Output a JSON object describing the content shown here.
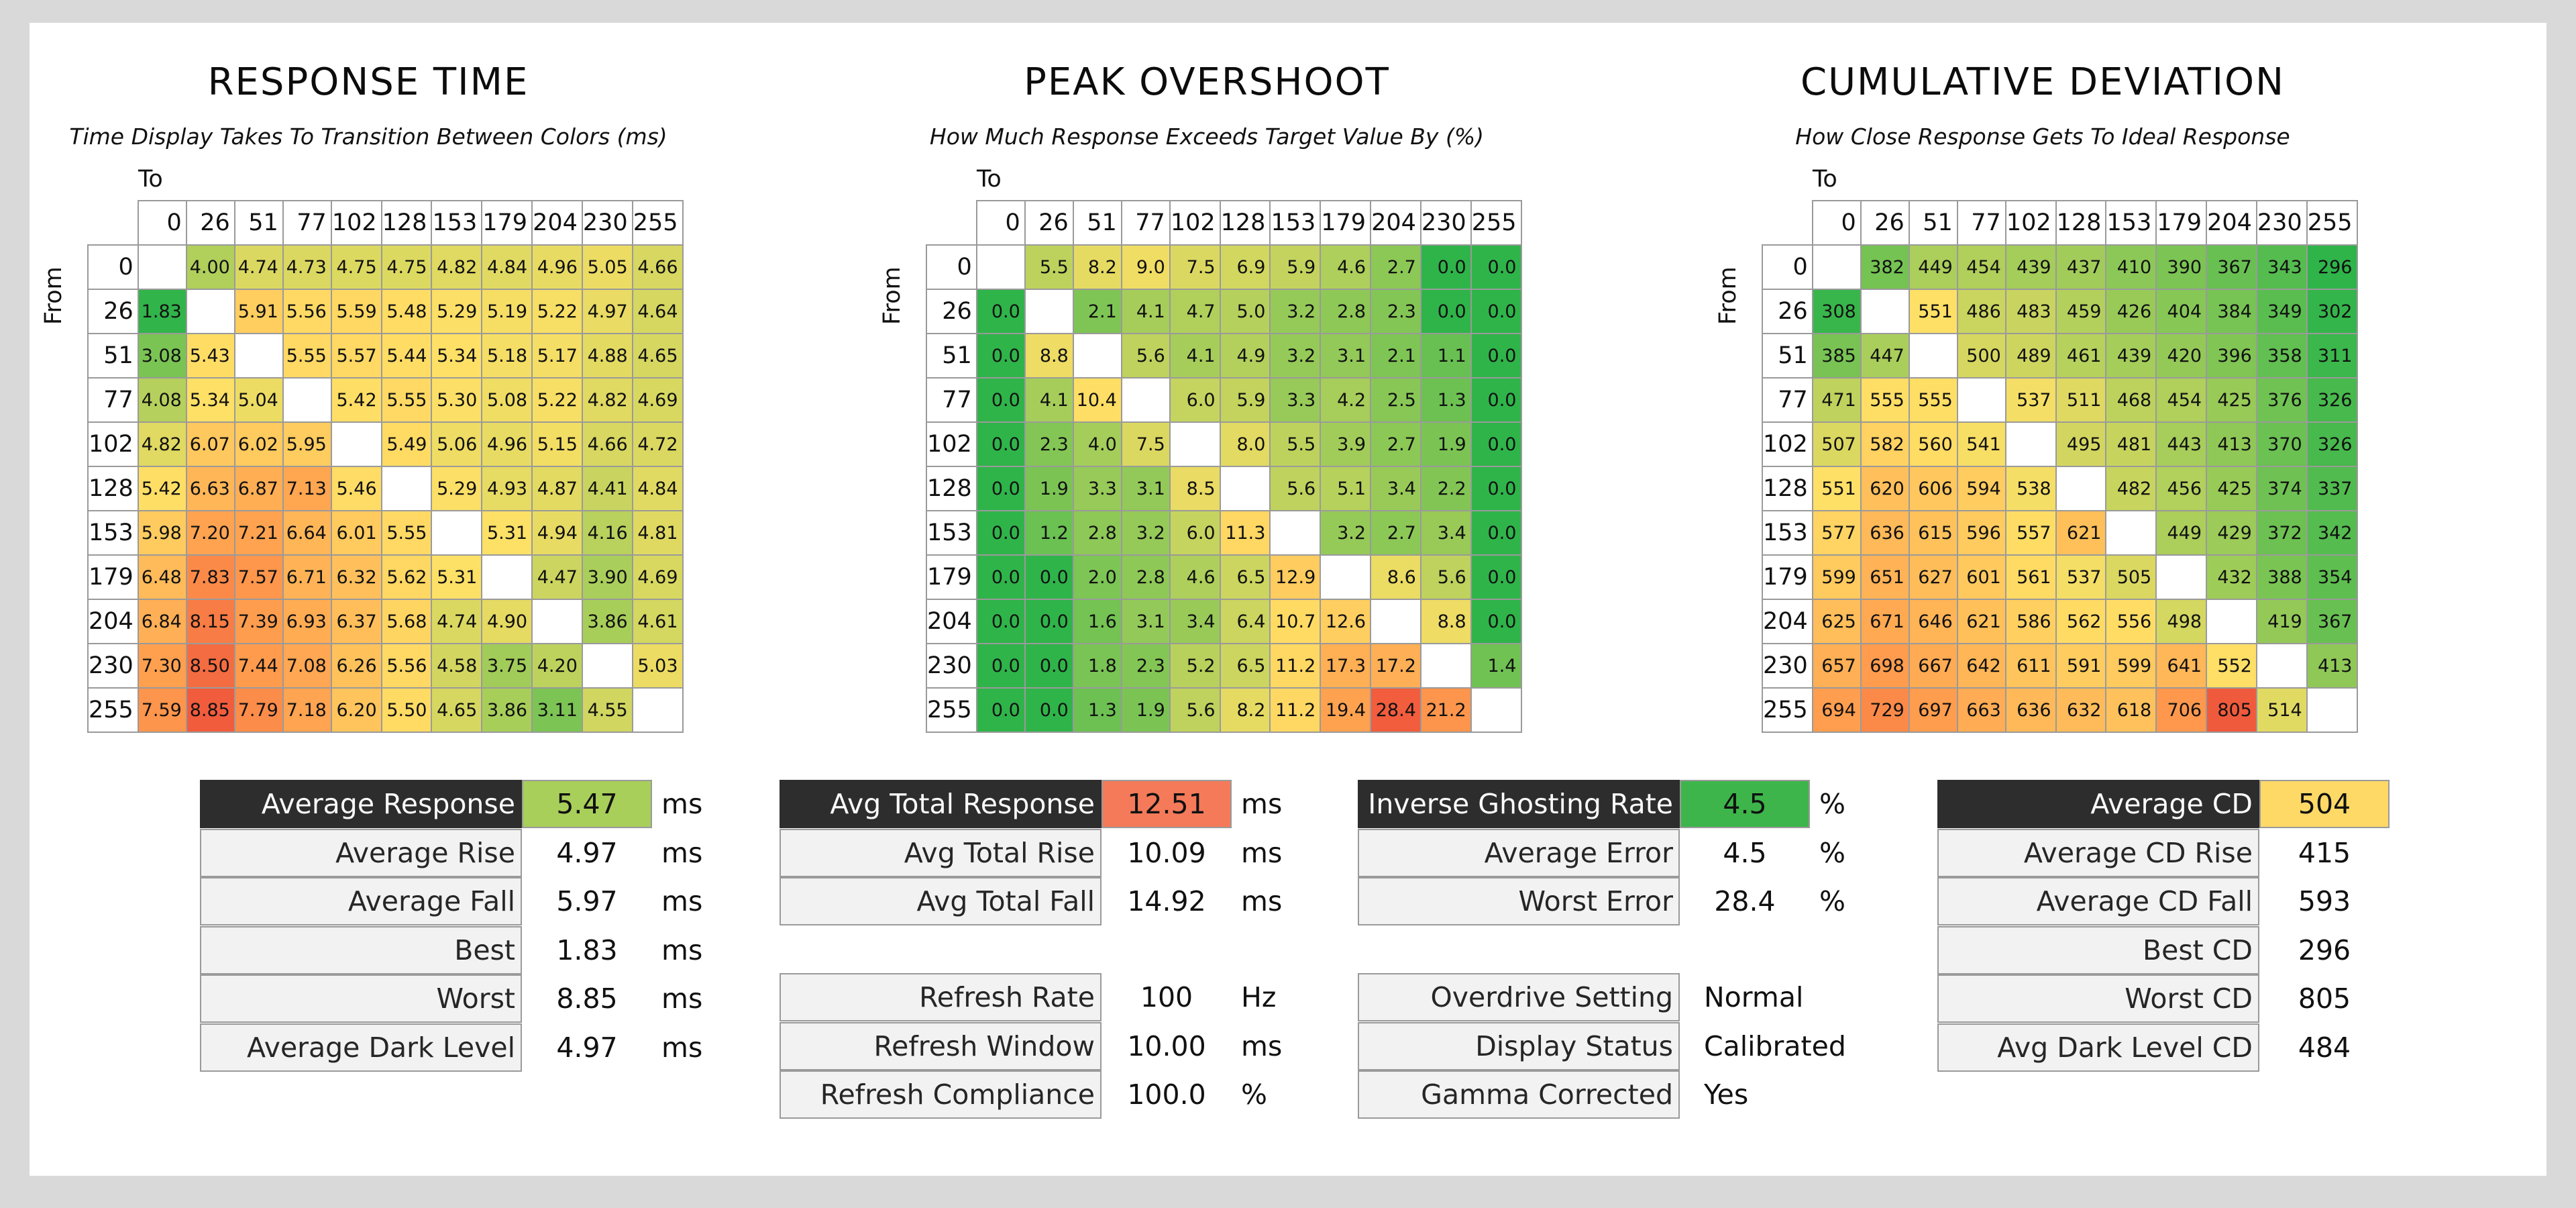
{
  "chart_data": [
    {
      "type": "heatmap",
      "title": "RESPONSE TIME",
      "subtitle": "Time Display Takes To Transition Between Colors (ms)",
      "xlabel": "To",
      "ylabel": "From",
      "categories": [
        "0",
        "26",
        "51",
        "77",
        "102",
        "128",
        "153",
        "179",
        "204",
        "230",
        "255"
      ],
      "values": [
        [
          "",
          "4.00",
          "4.74",
          "4.73",
          "4.75",
          "4.75",
          "4.82",
          "4.84",
          "4.96",
          "5.05",
          "4.66"
        ],
        [
          "1.83",
          "",
          "5.91",
          "5.56",
          "5.59",
          "5.48",
          "5.29",
          "5.19",
          "5.22",
          "4.97",
          "4.64"
        ],
        [
          "3.08",
          "5.43",
          "",
          "5.55",
          "5.57",
          "5.44",
          "5.34",
          "5.18",
          "5.17",
          "4.88",
          "4.65"
        ],
        [
          "4.08",
          "5.34",
          "5.04",
          "",
          "5.42",
          "5.55",
          "5.30",
          "5.08",
          "5.22",
          "4.82",
          "4.69"
        ],
        [
          "4.82",
          "6.07",
          "6.02",
          "5.95",
          "",
          "5.49",
          "5.06",
          "4.96",
          "5.15",
          "4.66",
          "4.72"
        ],
        [
          "5.42",
          "6.63",
          "6.87",
          "7.13",
          "5.46",
          "",
          "5.29",
          "4.93",
          "4.87",
          "4.41",
          "4.84"
        ],
        [
          "5.98",
          "7.20",
          "7.21",
          "6.64",
          "6.01",
          "5.55",
          "",
          "5.31",
          "4.94",
          "4.16",
          "4.81"
        ],
        [
          "6.48",
          "7.83",
          "7.57",
          "6.71",
          "6.32",
          "5.62",
          "5.31",
          "",
          "4.47",
          "3.90",
          "4.69"
        ],
        [
          "6.84",
          "8.15",
          "7.39",
          "6.93",
          "6.37",
          "5.68",
          "4.74",
          "4.90",
          "",
          "3.86",
          "4.61"
        ],
        [
          "7.30",
          "8.50",
          "7.44",
          "7.08",
          "6.26",
          "5.56",
          "4.58",
          "3.75",
          "4.20",
          "",
          "5.03"
        ],
        [
          "7.59",
          "8.85",
          "7.79",
          "7.18",
          "6.20",
          "5.50",
          "4.65",
          "3.86",
          "3.11",
          "4.55",
          ""
        ]
      ],
      "color_range": [
        1.8,
        8.9
      ]
    },
    {
      "type": "heatmap",
      "title": "PEAK OVERSHOOT",
      "subtitle": "How Much Response Exceeds Target Value By (%)",
      "xlabel": "To",
      "ylabel": "From",
      "categories": [
        "0",
        "26",
        "51",
        "77",
        "102",
        "128",
        "153",
        "179",
        "204",
        "230",
        "255"
      ],
      "values": [
        [
          "",
          "5.5",
          "8.2",
          "9.0",
          "7.5",
          "6.9",
          "5.9",
          "4.6",
          "2.7",
          "0.0",
          "0.0"
        ],
        [
          "0.0",
          "",
          "2.1",
          "4.1",
          "4.7",
          "5.0",
          "3.2",
          "2.8",
          "2.3",
          "0.0",
          "0.0"
        ],
        [
          "0.0",
          "8.8",
          "",
          "5.6",
          "4.1",
          "4.9",
          "3.2",
          "3.1",
          "2.1",
          "1.1",
          "0.0"
        ],
        [
          "0.0",
          "4.1",
          "10.4",
          "",
          "6.0",
          "5.9",
          "3.3",
          "4.2",
          "2.5",
          "1.3",
          "0.0"
        ],
        [
          "0.0",
          "2.3",
          "4.0",
          "7.5",
          "",
          "8.0",
          "5.5",
          "3.9",
          "2.7",
          "1.9",
          "0.0"
        ],
        [
          "0.0",
          "1.9",
          "3.3",
          "3.1",
          "8.5",
          "",
          "5.6",
          "5.1",
          "3.4",
          "2.2",
          "0.0"
        ],
        [
          "0.0",
          "1.2",
          "2.8",
          "3.2",
          "6.0",
          "11.3",
          "",
          "3.2",
          "2.7",
          "3.4",
          "0.0"
        ],
        [
          "0.0",
          "0.0",
          "2.0",
          "2.8",
          "4.6",
          "6.5",
          "12.9",
          "",
          "8.6",
          "5.6",
          "0.0"
        ],
        [
          "0.0",
          "0.0",
          "1.6",
          "3.1",
          "3.4",
          "6.4",
          "10.7",
          "12.6",
          "",
          "8.8",
          "0.0"
        ],
        [
          "0.0",
          "0.0",
          "1.8",
          "2.3",
          "5.2",
          "6.5",
          "11.2",
          "17.3",
          "17.2",
          "",
          "1.4"
        ],
        [
          "0.0",
          "0.0",
          "1.3",
          "1.9",
          "5.6",
          "8.2",
          "11.2",
          "19.4",
          "28.4",
          "21.2",
          ""
        ]
      ],
      "color_range": [
        0,
        28.4
      ]
    },
    {
      "type": "heatmap",
      "title": "CUMULATIVE DEVIATION",
      "subtitle": "How Close Response Gets To Ideal Response",
      "xlabel": "To",
      "ylabel": "From",
      "categories": [
        "0",
        "26",
        "51",
        "77",
        "102",
        "128",
        "153",
        "179",
        "204",
        "230",
        "255"
      ],
      "values": [
        [
          "",
          "382",
          "449",
          "454",
          "439",
          "437",
          "410",
          "390",
          "367",
          "343",
          "296"
        ],
        [
          "308",
          "",
          "551",
          "486",
          "483",
          "459",
          "426",
          "404",
          "384",
          "349",
          "302"
        ],
        [
          "385",
          "447",
          "",
          "500",
          "489",
          "461",
          "439",
          "420",
          "396",
          "358",
          "311"
        ],
        [
          "471",
          "555",
          "555",
          "",
          "537",
          "511",
          "468",
          "454",
          "425",
          "376",
          "326"
        ],
        [
          "507",
          "582",
          "560",
          "541",
          "",
          "495",
          "481",
          "443",
          "413",
          "370",
          "326"
        ],
        [
          "551",
          "620",
          "606",
          "594",
          "538",
          "",
          "482",
          "456",
          "425",
          "374",
          "337"
        ],
        [
          "577",
          "636",
          "615",
          "596",
          "557",
          "621",
          "",
          "449",
          "429",
          "372",
          "342"
        ],
        [
          "599",
          "651",
          "627",
          "601",
          "561",
          "537",
          "505",
          "",
          "432",
          "388",
          "354"
        ],
        [
          "625",
          "671",
          "646",
          "621",
          "586",
          "562",
          "556",
          "498",
          "",
          "419",
          "367"
        ],
        [
          "657",
          "698",
          "667",
          "642",
          "611",
          "591",
          "599",
          "641",
          "552",
          "",
          "413"
        ],
        [
          "694",
          "729",
          "697",
          "663",
          "636",
          "632",
          "618",
          "706",
          "805",
          "514",
          ""
        ]
      ],
      "color_range": [
        296,
        805
      ]
    }
  ],
  "colors": {
    "green": "#2fb44a",
    "yellow": "#ffe066",
    "orange": "#ff9a4d",
    "red": "#f05a3c",
    "avg_response_fill": "#a8cf5a",
    "avg_total_response_fill": "#f47a5a",
    "inverse_ghosting_fill": "#3db54a",
    "average_cd_fill": "#ffd966"
  },
  "stats": {
    "response": [
      {
        "label": "Average Response",
        "value": "5.47",
        "unit": "ms",
        "header": true
      },
      {
        "label": "Average Rise",
        "value": "4.97",
        "unit": "ms"
      },
      {
        "label": "Average Fall",
        "value": "5.97",
        "unit": "ms"
      },
      {
        "label": "Best",
        "value": "1.83",
        "unit": "ms"
      },
      {
        "label": "Worst",
        "value": "8.85",
        "unit": "ms"
      },
      {
        "label": "Average Dark Level",
        "value": "4.97",
        "unit": "ms"
      }
    ],
    "total": [
      {
        "label": "Avg Total Response",
        "value": "12.51",
        "unit": "ms",
        "header": true
      },
      {
        "label": "Avg Total Rise",
        "value": "10.09",
        "unit": "ms"
      },
      {
        "label": "Avg Total Fall",
        "value": "14.92",
        "unit": "ms"
      }
    ],
    "refresh": [
      {
        "label": "Refresh Rate",
        "value": "100",
        "unit": "Hz"
      },
      {
        "label": "Refresh Window",
        "value": "10.00",
        "unit": "ms"
      },
      {
        "label": "Refresh Compliance",
        "value": "100.0",
        "unit": "%"
      }
    ],
    "ghosting": [
      {
        "label": "Inverse Ghosting Rate",
        "value": "4.5",
        "unit": "%",
        "header": true
      },
      {
        "label": "Average Error",
        "value": "4.5",
        "unit": "%"
      },
      {
        "label": "Worst Error",
        "value": "28.4",
        "unit": "%"
      }
    ],
    "settings": [
      {
        "label": "Overdrive Setting",
        "value": "Normal"
      },
      {
        "label": "Display Status",
        "value": "Calibrated"
      },
      {
        "label": "Gamma Corrected",
        "value": "Yes"
      }
    ],
    "cd": [
      {
        "label": "Average CD",
        "value": "504",
        "header": true
      },
      {
        "label": "Average CD Rise",
        "value": "415"
      },
      {
        "label": "Average CD Fall",
        "value": "593"
      },
      {
        "label": "Best CD",
        "value": "296"
      },
      {
        "label": "Worst CD",
        "value": "805"
      },
      {
        "label": "Avg Dark Level CD",
        "value": "484"
      }
    ]
  }
}
